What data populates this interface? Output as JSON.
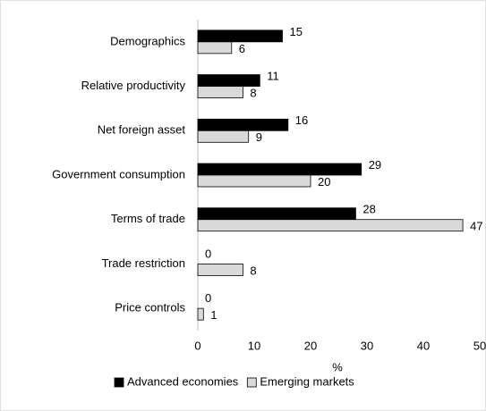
{
  "chart_data": {
    "type": "hbar",
    "categories": [
      "Demographics",
      "Relative productivity",
      "Net foreign asset",
      "Government consumption",
      "Terms of trade",
      "Trade restriction",
      "Price controls"
    ],
    "series": [
      {
        "name": "Advanced economies",
        "color": "#000000",
        "edgecolor": "#000000",
        "label_color": "#595959",
        "values": [
          15,
          11,
          16,
          29,
          28,
          0,
          0
        ]
      },
      {
        "name": "Emerging markets",
        "color": "#d9d9d9",
        "edgecolor": "#000000",
        "label_color": "#000000",
        "values": [
          6,
          8,
          9,
          20,
          47,
          8,
          1
        ]
      }
    ],
    "xlabel": "%",
    "xlim": [
      0,
      50
    ],
    "xticks": [
      0,
      10,
      20,
      30,
      40,
      50
    ],
    "legend": "bottom"
  }
}
